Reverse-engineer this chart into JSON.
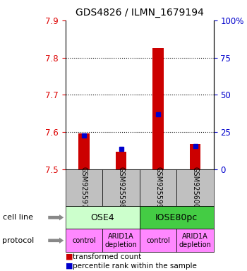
{
  "title": "GDS4826 / ILMN_1679194",
  "samples": [
    "GSM925597",
    "GSM925598",
    "GSM925599",
    "GSM925600"
  ],
  "transformed_counts": [
    7.597,
    7.548,
    7.826,
    7.568
  ],
  "percentile_ranks": [
    7.59,
    7.555,
    7.648,
    7.563
  ],
  "ylim": [
    7.5,
    7.9
  ],
  "yticks_left": [
    7.5,
    7.6,
    7.7,
    7.8,
    7.9
  ],
  "yticks_right": [
    0,
    25,
    50,
    75,
    100
  ],
  "ylabel_left_color": "#dd0000",
  "ylabel_right_color": "#0000cc",
  "bar_color": "#cc0000",
  "dot_color": "#0000cc",
  "sample_box_color": "#c0c0c0",
  "cell_line_groups": [
    {
      "label": "OSE4",
      "start": 0,
      "end": 2,
      "color": "#ccffcc"
    },
    {
      "label": "IOSE80pc",
      "start": 2,
      "end": 4,
      "color": "#44cc44"
    }
  ],
  "protocols": [
    "control",
    "ARID1A\ndepletion",
    "control",
    "ARID1A\ndepletion"
  ],
  "protocol_color": "#ff88ff",
  "legend_red": "transformed count",
  "legend_blue": "percentile rank within the sample",
  "row_label_cell_line": "cell line",
  "row_label_protocol": "protocol",
  "arrow_color": "#888888"
}
